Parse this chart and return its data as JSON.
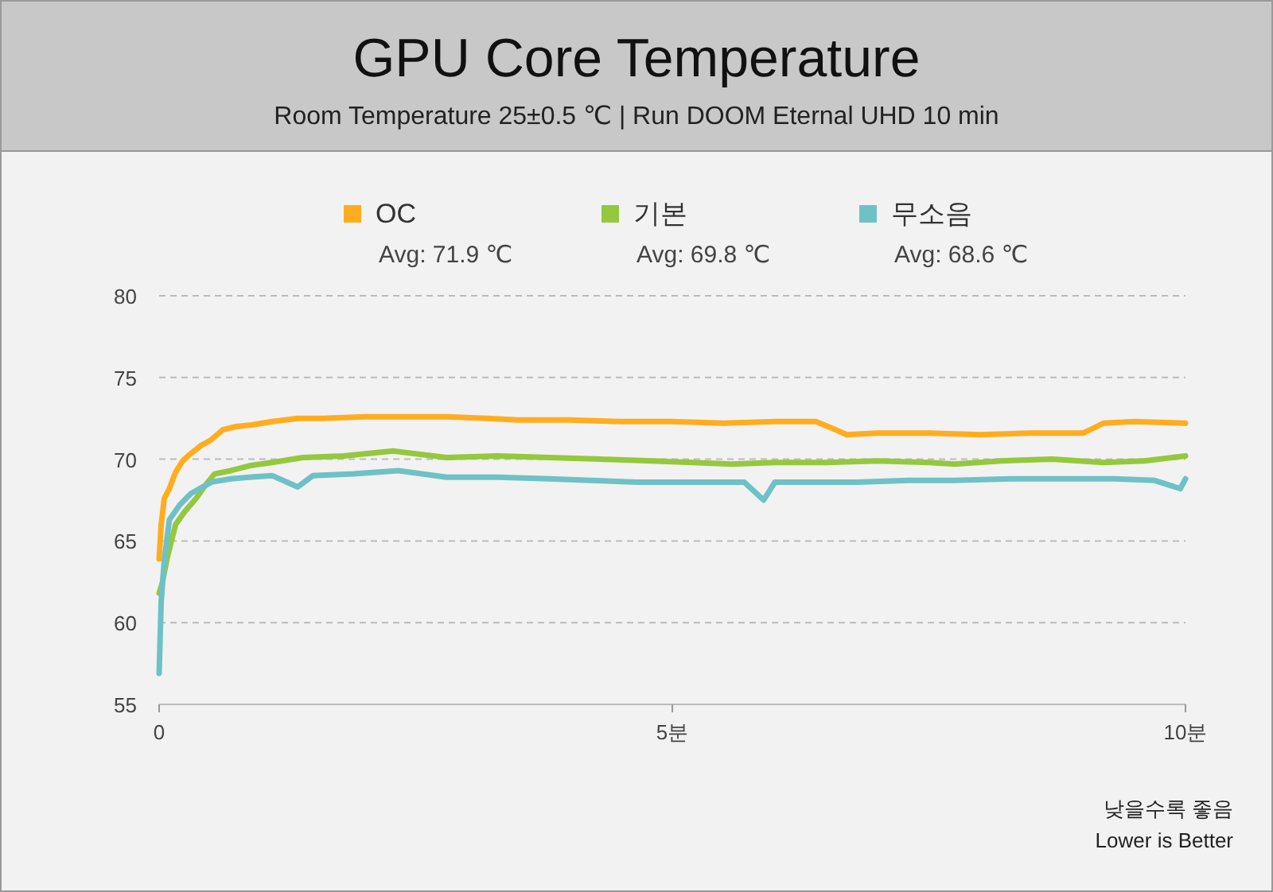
{
  "chart_data": {
    "type": "line",
    "title": "GPU Core Temperature",
    "subtitle": "Room Temperature 25±0.5 ℃  |  Run DOOM Eternal UHD 10 min",
    "xlim": [
      0,
      10
    ],
    "xticks": [
      0,
      {
        "value": 5,
        "label": "5분"
      },
      {
        "value": 10,
        "label": "10분"
      }
    ],
    "ylim": [
      55,
      80
    ],
    "yticks": [
      55,
      60,
      65,
      70,
      75,
      80
    ],
    "grid": "y",
    "legend": "top",
    "line_style": "solid",
    "marker": "none",
    "annotations": [
      "Avg: 71.9 ℃",
      "Avg: 69.8 ℃",
      "Avg: 68.6 ℃",
      "낮을수록 좋음",
      "Lower is Better"
    ],
    "series": [
      {
        "name": "OC",
        "color": "#ffad1f",
        "x": [
          0,
          0.02,
          0.05,
          0.1,
          0.16,
          0.23,
          0.3,
          0.4,
          0.51,
          0.62,
          0.75,
          0.9,
          1.1,
          1.35,
          1.6,
          2,
          2.4,
          2.8,
          3.2,
          3.5,
          4,
          4.5,
          5,
          5.5,
          6,
          6.4,
          6.59,
          6.7,
          7,
          7.5,
          8,
          8.5,
          9,
          9.07,
          9.2,
          9.5,
          10
        ],
        "values": [
          63.9,
          66,
          67.6,
          68.2,
          69.2,
          69.9,
          70.3,
          70.8,
          71.2,
          71.8,
          72,
          72.1,
          72.3,
          72.5,
          72.5,
          72.6,
          72.6,
          72.6,
          72.5,
          72.4,
          72.4,
          72.3,
          72.3,
          72.2,
          72.3,
          72.3,
          71.8,
          71.5,
          71.6,
          71.6,
          71.5,
          71.6,
          71.6,
          71.8,
          72.2,
          72.3,
          72.2
        ]
      },
      {
        "name": "기본",
        "color": "#94c83d",
        "x": [
          0,
          0.03,
          0.08,
          0.16,
          0.25,
          0.36,
          0.45,
          0.54,
          0.7,
          0.88,
          1.1,
          1.4,
          1.8,
          2.28,
          2.8,
          3.3,
          3.8,
          4.3,
          4.8,
          5.2,
          5.58,
          6,
          6.5,
          7,
          7.5,
          7.75,
          8.2,
          8.7,
          9.2,
          9.6,
          10
        ],
        "values": [
          61.8,
          62.4,
          64,
          66,
          66.8,
          67.6,
          68.4,
          69.1,
          69.3,
          69.6,
          69.8,
          70.1,
          70.2,
          70.5,
          70.1,
          70.2,
          70.1,
          70,
          69.9,
          69.8,
          69.7,
          69.8,
          69.8,
          69.9,
          69.8,
          69.7,
          69.9,
          70,
          69.8,
          69.9,
          70.2
        ]
      },
      {
        "name": "무소음",
        "color": "#6ec1c7",
        "x": [
          0,
          0.02,
          0.05,
          0.1,
          0.2,
          0.31,
          0.51,
          0.7,
          0.88,
          1.1,
          1.35,
          1.5,
          1.9,
          2.33,
          2.8,
          3.3,
          3.8,
          4.2,
          4.65,
          5.2,
          5.7,
          5.89,
          6,
          6.3,
          6.8,
          7.3,
          7.75,
          8.3,
          8.8,
          9.3,
          9.7,
          9.95,
          10
        ],
        "values": [
          56.9,
          61.3,
          63.8,
          66.3,
          67.2,
          67.9,
          68.6,
          68.8,
          68.9,
          69,
          68.3,
          69,
          69.1,
          69.3,
          68.9,
          68.9,
          68.8,
          68.7,
          68.6,
          68.6,
          68.6,
          67.5,
          68.6,
          68.6,
          68.6,
          68.7,
          68.7,
          68.8,
          68.8,
          68.8,
          68.7,
          68.2,
          68.8
        ]
      }
    ]
  }
}
